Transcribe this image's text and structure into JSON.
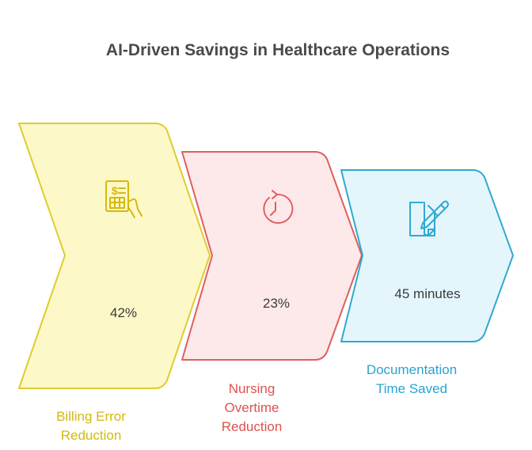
{
  "title": "AI-Driven Savings in Healthcare Operations",
  "colors": {
    "yellow_fill": "#fdf8c8",
    "yellow_stroke": "#e0cc2e",
    "yellow_text": "#d4b90e",
    "red_fill": "#fde9e9",
    "red_stroke": "#e05e5e",
    "red_text": "#e0514f",
    "blue_fill": "#e4f6fc",
    "blue_stroke": "#2fa9d2",
    "blue_text": "#29a4d0"
  },
  "steps": [
    {
      "value": "42%",
      "label_lines": [
        "Billing Error",
        "Reduction"
      ],
      "icon": "bill-calculator-icon"
    },
    {
      "value": "23%",
      "label_lines": [
        "Nursing",
        "Overtime",
        "Reduction"
      ],
      "icon": "clock-rewind-icon"
    },
    {
      "value": "45 minutes",
      "label_lines": [
        "Documentation",
        "Time Saved"
      ],
      "icon": "document-pen-icon"
    }
  ]
}
